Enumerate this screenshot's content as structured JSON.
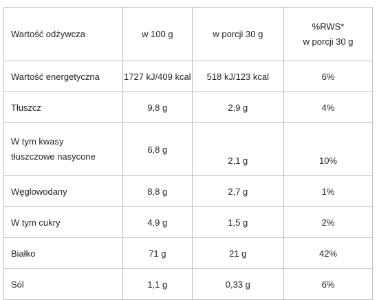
{
  "header": {
    "col0": "Wartość odżywcza",
    "col1": "w 100 g",
    "col2": "w porcji 30 g",
    "col3_line1": "%RWS*",
    "col3_line2": "w porcji 30 g"
  },
  "rows": [
    {
      "name": "Wartość energetyczna",
      "per100": "1727 kJ/409 kcal",
      "portion": "518 kJ/123 kcal",
      "rws": "6%"
    },
    {
      "name": "Tłuszcz",
      "per100": "9,8 g",
      "portion": "2,9 g",
      "rws": "4%"
    },
    {
      "name_line1": "W tym kwasy",
      "name_line2": "tłuszczowe nasycone",
      "per100": "6,8 g",
      "portion": "2,1 g",
      "rws": "10%"
    },
    {
      "name": "Węglowodany",
      "per100": "8,8 g",
      "portion": "2,7 g",
      "rws": "1%"
    },
    {
      "name": "W tym cukry",
      "per100": "4,9 g",
      "portion": "1,5 g",
      "rws": "2%"
    },
    {
      "name": "Białko",
      "per100": "71 g",
      "portion": "21 g",
      "rws": "42%"
    },
    {
      "name": "Sól",
      "per100": "1,1 g",
      "portion": "0,33 g",
      "rws": "6%"
    }
  ]
}
